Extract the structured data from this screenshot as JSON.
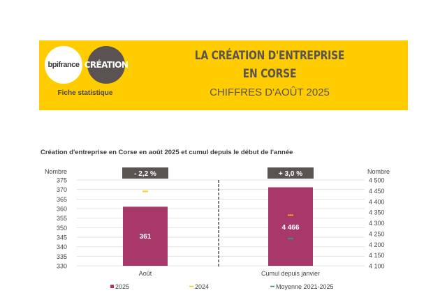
{
  "header": {
    "logo_left": "bpifrance",
    "logo_right": "CRÉATION",
    "subtitle": "Fiche statistique",
    "title_line1": "LA CRÉATION D'ENTREPRISE",
    "title_line2": "EN CORSE",
    "title_line3": "CHIFFRES D'AOÛT 2025",
    "colors": {
      "banner": "#ffcc00",
      "text": "#5a5352"
    }
  },
  "chart_data": {
    "type": "bar",
    "title": "Création d'entreprise en Corse en août 2025 et cumul depuis le début de l'année",
    "left_axis": {
      "label": "Nombre",
      "range": [
        330,
        375
      ],
      "ticks": [
        "375",
        "370",
        "365",
        "360",
        "355",
        "350",
        "345",
        "340",
        "335",
        "330"
      ],
      "tick_values": [
        375,
        370,
        365,
        360,
        355,
        350,
        345,
        340,
        335,
        330
      ]
    },
    "right_axis": {
      "label": "Nombre",
      "range": [
        4100,
        4500
      ],
      "ticks": [
        "4 500",
        "4 450",
        "4 400",
        "4 350",
        "4 300",
        "4 250",
        "4 200",
        "4 150",
        "4 100"
      ],
      "tick_values": [
        4500,
        4450,
        4400,
        4350,
        4300,
        4250,
        4200,
        4150,
        4100
      ]
    },
    "categories": [
      "Août",
      "Cumul depuis janvier"
    ],
    "series": [
      {
        "name": "2025",
        "type": "bar",
        "values": [
          361,
          4466
        ],
        "labels": [
          "361",
          "4 466"
        ],
        "color": "#a8386a"
      },
      {
        "name": "2024",
        "type": "marker",
        "values": [
          369,
          4336
        ],
        "color": "#ffd000"
      },
      {
        "name": "Moyenne 2021-2025",
        "type": "marker",
        "values": [
          null,
          4227
        ],
        "color": "#3e8c86"
      }
    ],
    "cumul_2024_marker_color": "#f0a020",
    "variations": [
      "- 2,2 %",
      "+ 3,0 %"
    ],
    "legend": [
      "2025",
      "2024",
      "Moyenne 2021-2025"
    ],
    "legend_position": "bottom",
    "grid": true
  }
}
